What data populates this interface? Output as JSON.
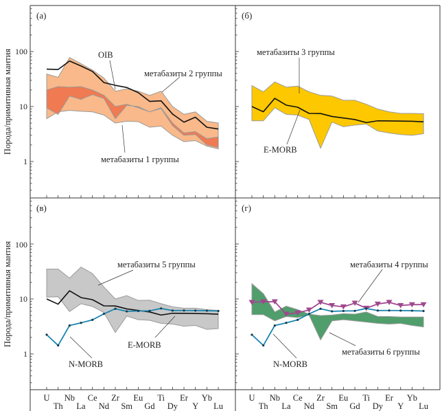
{
  "figure": {
    "y_axis_label": "Порода/примитивная мантия",
    "y_ticks": [
      "1",
      "10",
      "100"
    ]
  },
  "chart_data": {
    "type": "line",
    "x": [
      "U",
      "Th",
      "Nb",
      "La",
      "Ce",
      "Nd",
      "Zr",
      "Sm",
      "Eu",
      "Gd",
      "Ti",
      "Dy",
      "Er",
      "Y",
      "Yb",
      "Lu"
    ],
    "xlabel": "",
    "ylabel": "Порода/примитивная мантия",
    "yscale": "log",
    "ylim": [
      0.35,
      500
    ],
    "yticks": [
      1,
      10,
      100
    ],
    "grid": false,
    "panels": [
      {
        "id": "a",
        "label": "(а)",
        "fields": [
          {
            "name": "метабазиты 2 группы",
            "color": "#f9b98a",
            "upper": [
              39,
              34,
              78,
              60,
              46,
              33,
              19,
              21,
              19,
              16,
              19,
              10,
              7.2,
              8.0,
              5.4,
              5.0
            ],
            "lower": [
              6,
              8,
              8.5,
              8.2,
              8,
              7,
              5,
              5.4,
              5.3,
              4.2,
              4.4,
              3.0,
              2.3,
              2.4,
              1.9,
              1.7
            ]
          },
          {
            "name": "метабазиты 1 группы",
            "color": "#ee6f47",
            "upper": [
              20,
              23,
              22.5,
              23,
              20,
              16,
              10,
              11,
              9.5,
              8,
              9.5,
              5,
              3.3,
              3.5,
              2.6,
              2.8
            ],
            "lower": [
              9.5,
              7.2,
              15.5,
              13.5,
              16.5,
              14,
              6,
              10.5,
              10,
              8,
              9.2,
              4.5,
              3.0,
              3.1,
              2.0,
              1.8
            ]
          }
        ],
        "lines": [
          {
            "name": "OIB",
            "color": "#111111",
            "values": [
              47.9,
              47.1,
              67.3,
              54.6,
              43.5,
              27.3,
              24.3,
              22.2,
              17.9,
              12.4,
              12.7,
              7.3,
              5.2,
              6.4,
              4.2,
              3.9
            ]
          }
        ],
        "annotations": [
          "OIB",
          "метабазиты 2 группы",
          "метабазиты 1 группы"
        ]
      },
      {
        "id": "b",
        "label": "(б)",
        "fields": [
          {
            "name": "метабазиты 3 группы",
            "color": "#fdc800",
            "upper": [
              24,
              18.5,
              28,
              22.5,
              23.5,
              18.5,
              16,
              15.5,
              13,
              13,
              11,
              9,
              8,
              7.5,
              7.5,
              7.4
            ],
            "lower": [
              5.5,
              5.5,
              9.5,
              7.2,
              7.0,
              5.8,
              1.75,
              5.2,
              4.3,
              4.6,
              4.8,
              3.6,
              3.3,
              3.1,
              3.0,
              3.2
            ]
          }
        ],
        "lines": [
          {
            "name": "E-MORB",
            "color": "#111111",
            "values": [
              10,
              8.04,
              14.1,
              10.6,
              9.72,
              7.5,
              7.46,
              6.6,
              6.18,
              5.8,
              5.1,
              5.5,
              5.48,
              5.43,
              5.4,
              5.28
            ]
          }
        ],
        "annotations": [
          "метабазиты 3 группы",
          "E-MORB"
        ]
      },
      {
        "id": "v",
        "label": "(в)",
        "fields": [
          {
            "name": "метабазиты 5 группы",
            "color": "#c8c8c8",
            "upper": [
              35,
              35,
              24,
              38,
              29,
              16.5,
              10,
              11.5,
              9.4,
              9.5,
              8.2,
              7.2,
              6.8,
              6.8,
              6.4,
              6.2
            ],
            "lower": [
              10.8,
              11,
              5.9,
              8.2,
              7.3,
              5.7,
              2.45,
              4.9,
              4.2,
              4.1,
              3.6,
              3.5,
              3.2,
              3.3,
              2.8,
              2.9
            ]
          }
        ],
        "lines": [
          {
            "name": "E-MORB",
            "color": "#111111",
            "values": [
              10,
              8.04,
              14.1,
              10.6,
              9.72,
              7.5,
              7.46,
              6.6,
              6.18,
              5.8,
              5.1,
              5.5,
              5.48,
              5.43,
              5.4,
              5.28
            ]
          },
          {
            "name": "N-MORB",
            "color": "#1a86b0",
            "marker": "dot",
            "values": [
              2.24,
              1.43,
              3.29,
              3.68,
              4.17,
              5.36,
              6.64,
              5.96,
              6.05,
              6.08,
              6.72,
              6.16,
              6.18,
              6.15,
              6.12,
              6.04
            ]
          }
        ],
        "annotations": [
          "метабазиты 5 группы",
          "E-MORB",
          "N-MORB"
        ]
      },
      {
        "id": "g",
        "label": "(г)",
        "fields": [
          {
            "name": "метабазиты 6 группы",
            "color": "#4f9e6c",
            "upper": [
              19,
              12.5,
              5.8,
              7.4,
              6.4,
              5.3,
              5.0,
              5.1,
              5.4,
              5.3,
              5.8,
              4.8,
              4.8,
              4.7,
              4.7,
              4.7
            ],
            "lower": [
              5.2,
              5.2,
              4.0,
              4.8,
              4.6,
              5.1,
              1.8,
              4.0,
              4.2,
              4.0,
              3.8,
              3.6,
              3.5,
              3.6,
              3.3,
              3.1
            ]
          }
        ],
        "lines": [
          {
            "name": "метабазиты 4 группы",
            "color": "#a0488e",
            "marker": "triangle-down",
            "values": [
              8.7,
              8.9,
              8.9,
              5.3,
              5.6,
              6.3,
              8.7,
              7.6,
              7.2,
              8.4,
              6.8,
              8.1,
              8.7,
              7.6,
              7.9,
              7.9
            ]
          },
          {
            "name": "N-MORB",
            "color": "#1a86b0",
            "marker": "dot",
            "values": [
              2.24,
              1.43,
              3.29,
              3.68,
              4.17,
              5.36,
              6.64,
              5.96,
              6.05,
              6.08,
              6.72,
              6.16,
              6.18,
              6.15,
              6.12,
              6.04
            ]
          }
        ],
        "annotations": [
          "метабазиты 4 группы",
          "N-MORB",
          "метабазиты 6 группы"
        ]
      }
    ]
  }
}
